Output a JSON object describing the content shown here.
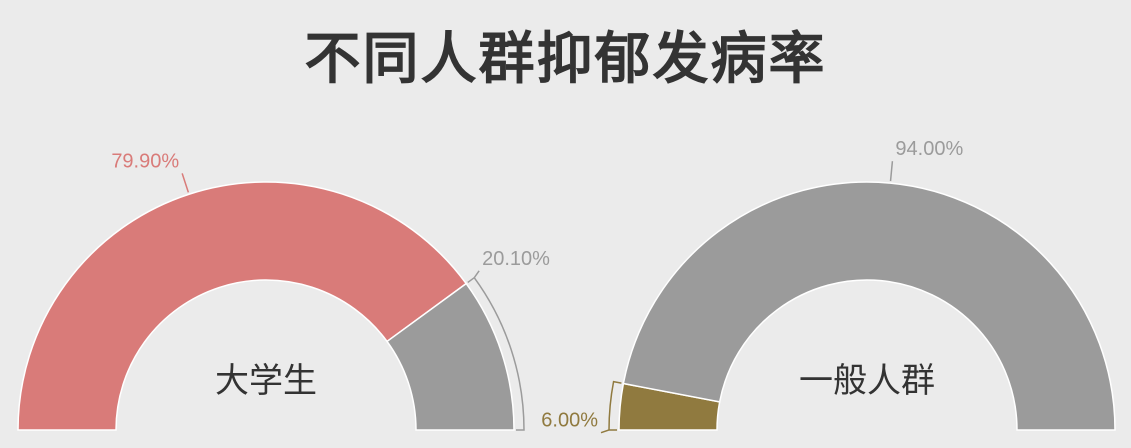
{
  "title": "不同人群抑郁发病率",
  "colors": {
    "red": "#d97b79",
    "gray": "#9b9b9b",
    "olive": "#907a3f",
    "background": "#ebebeb"
  },
  "chart_data": [
    {
      "type": "pie",
      "variant": "semicircle-donut",
      "center_label": "大学生",
      "slices": [
        {
          "value": 79.9,
          "label": "79.90%",
          "color": "#d97b79"
        },
        {
          "value": 20.1,
          "label": "20.10%",
          "color": "#9b9b9b"
        }
      ]
    },
    {
      "type": "pie",
      "variant": "semicircle-donut",
      "center_label": "一般人群",
      "slices": [
        {
          "value": 6.0,
          "label": "6.00%",
          "color": "#907a3f"
        },
        {
          "value": 94.0,
          "label": "94.00%",
          "color": "#9b9b9b"
        }
      ]
    }
  ]
}
